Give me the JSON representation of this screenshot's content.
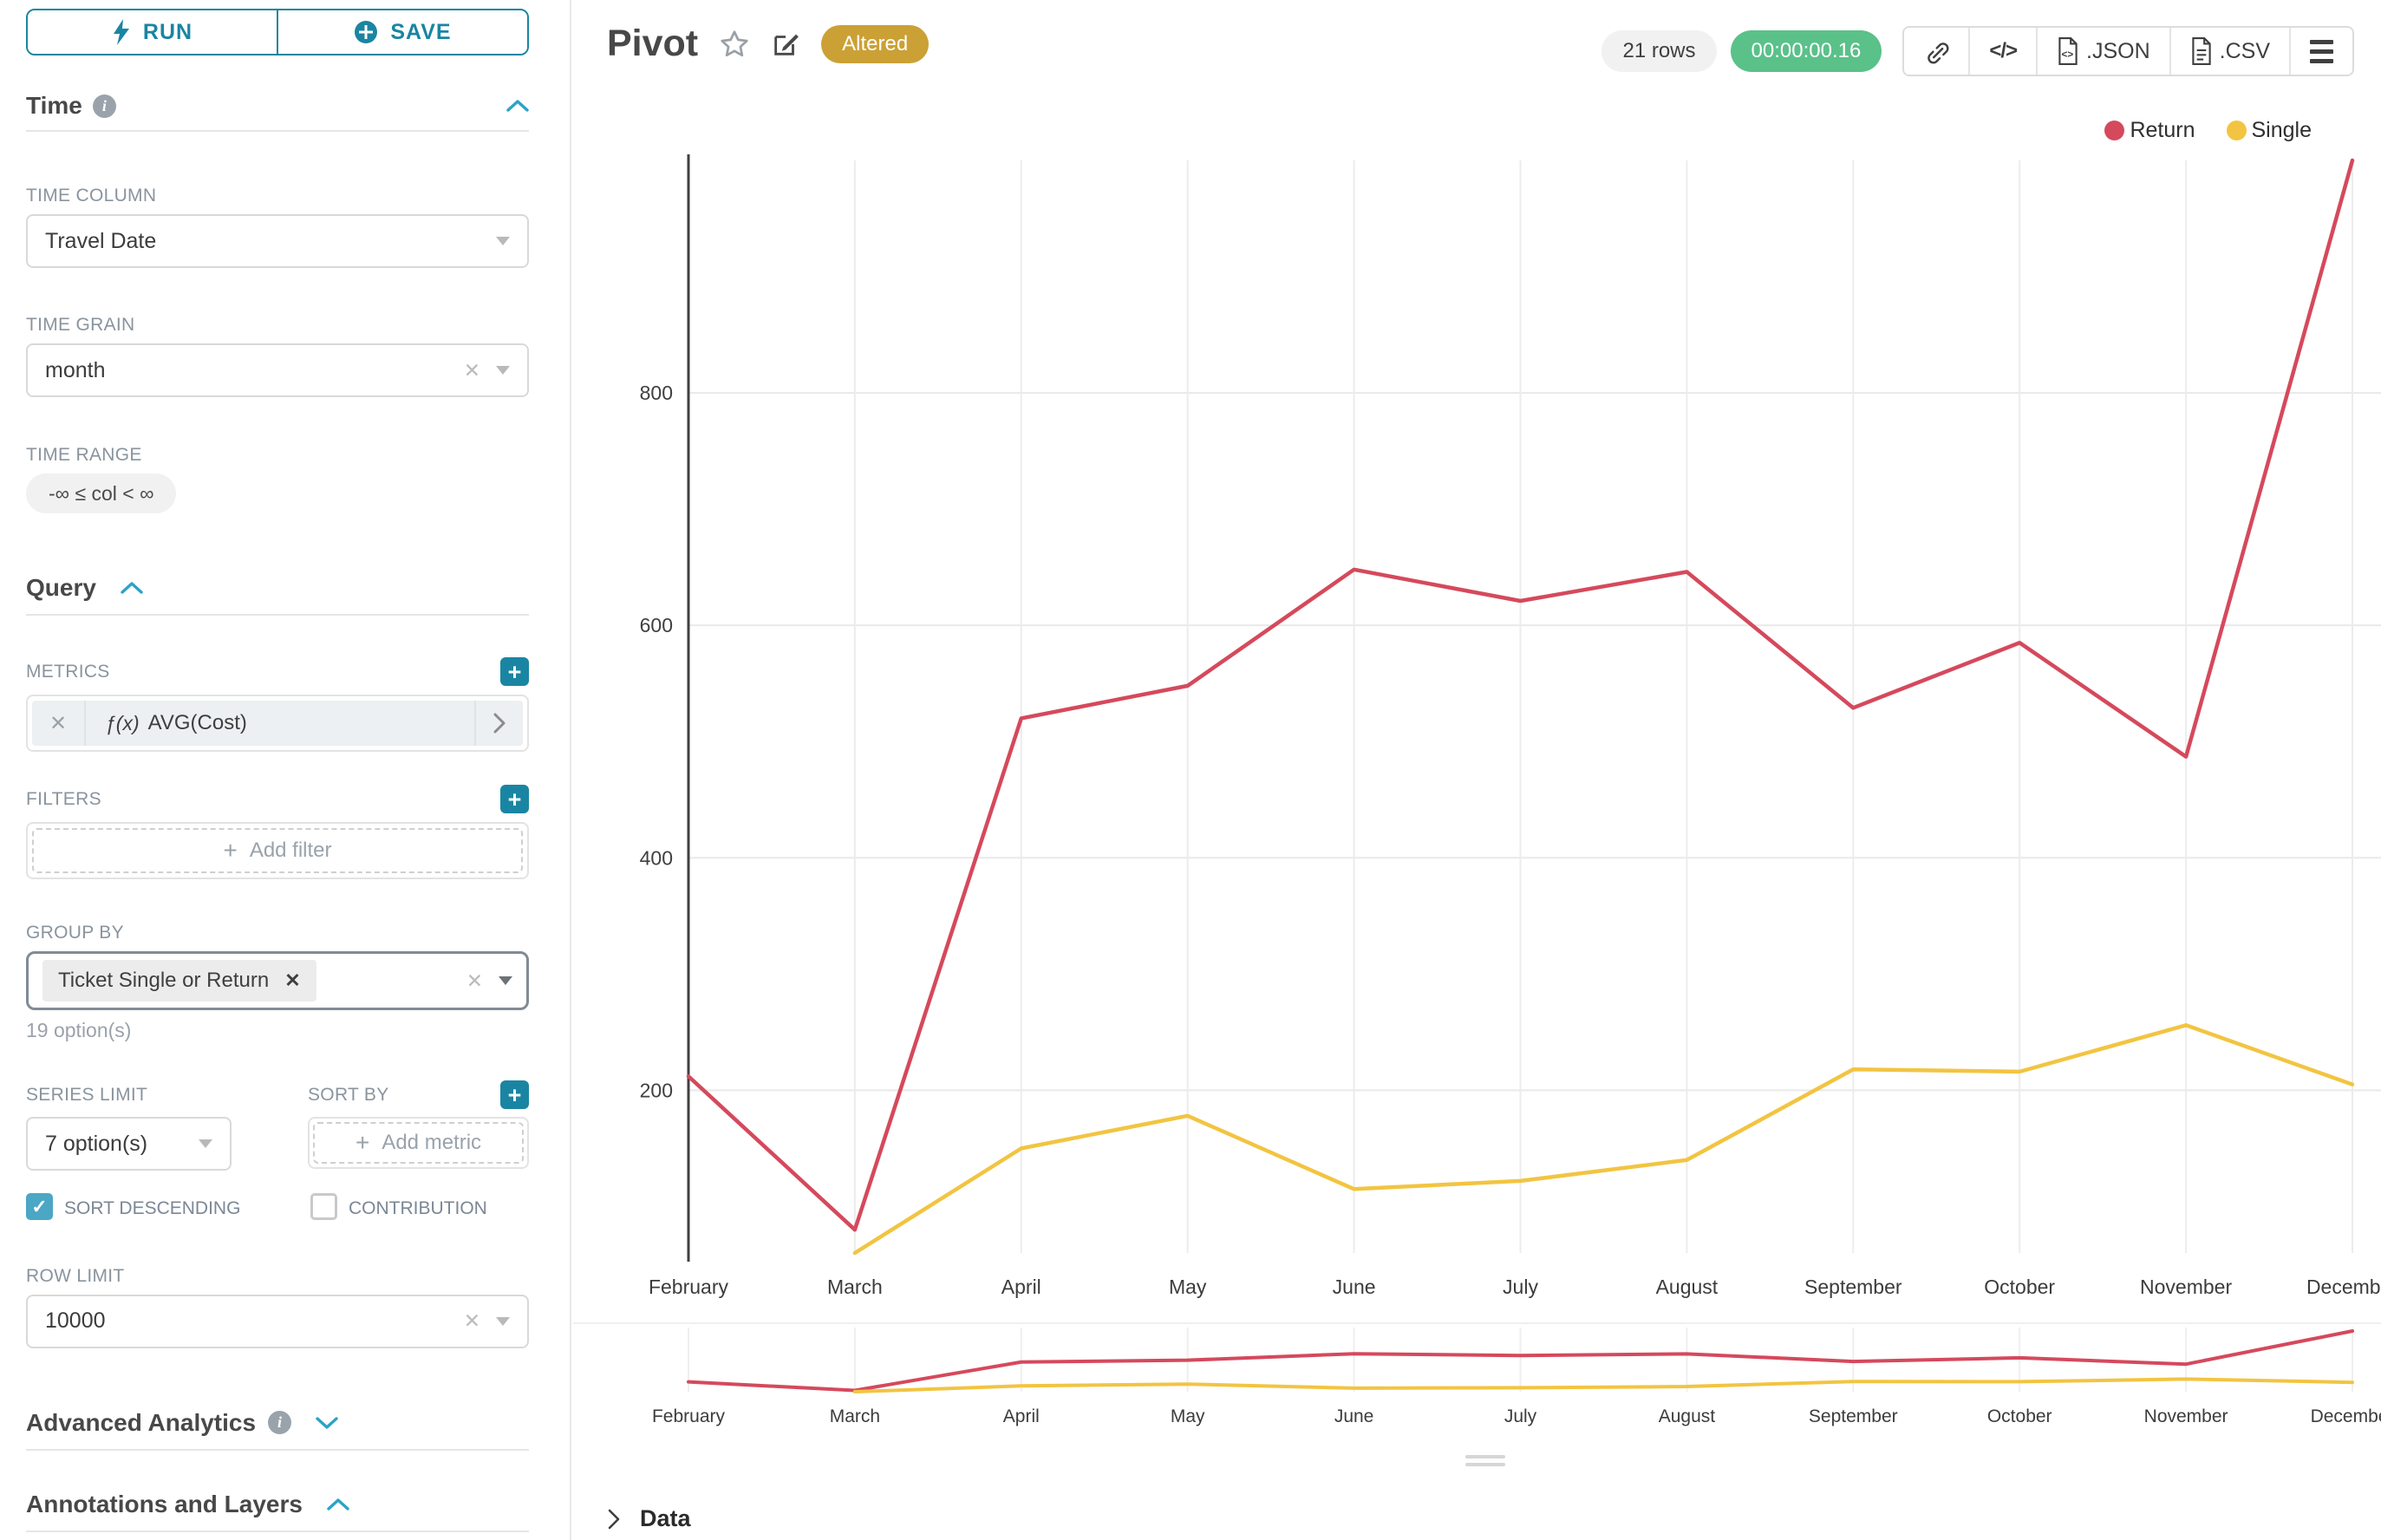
{
  "colors": {
    "accent": "#1a85a2",
    "accent-light": "#4ba7c4",
    "chevron": "#2ba3c7",
    "success": "#5ac189",
    "altered": "#cba135",
    "return-red": "#d5495c",
    "single-yellow": "#f2c441"
  },
  "sidebar": {
    "run_label": "RUN",
    "save_label": "SAVE",
    "time": {
      "section_title": "Time",
      "time_column_label": "TIME COLUMN",
      "time_column_value": "Travel Date",
      "time_grain_label": "TIME GRAIN",
      "time_grain_value": "month",
      "time_range_label": "TIME RANGE",
      "time_range_value": "-∞ ≤ col < ∞"
    },
    "query": {
      "section_title": "Query",
      "metrics_label": "METRICS",
      "metric_fx": "ƒ(x)",
      "metric_value": "AVG(Cost)",
      "filters_label": "FILTERS",
      "add_filter_label": "Add filter",
      "group_by_label": "GROUP BY",
      "group_by_tag": "Ticket Single or Return",
      "group_by_hint": "19 option(s)",
      "series_limit_label": "SERIES LIMIT",
      "series_limit_value": "7 option(s)",
      "sort_by_label": "SORT BY",
      "add_metric_label": "Add metric",
      "sort_descending_label": "SORT DESCENDING",
      "contribution_label": "CONTRIBUTION",
      "row_limit_label": "ROW LIMIT",
      "row_limit_value": "10000"
    },
    "advanced_analytics_label": "Advanced Analytics",
    "annotations_label": "Annotations and Layers"
  },
  "header": {
    "title": "Pivot",
    "altered_badge": "Altered",
    "rows_badge": "21 rows",
    "timer_badge": "00:00:00.16",
    "json_label": ".JSON",
    "csv_label": ".CSV"
  },
  "icons": {
    "run": "lightning-icon",
    "save": "plus-circle-icon",
    "info": "info-icon",
    "section_collapse": "chevron-up-icon",
    "section_expand": "chevron-down-icon",
    "favorite": "star-icon",
    "edit": "edit-pencil-icon",
    "share": "link-icon",
    "embed": "code-icon",
    "export_json": "file-json-icon",
    "export_csv": "file-csv-icon",
    "menu": "hamburger-icon",
    "drag": "drag-handle"
  },
  "chart_data": {
    "type": "line",
    "title": "Pivot",
    "categories": [
      "February",
      "March",
      "April",
      "May",
      "June",
      "July",
      "August",
      "September",
      "October",
      "November",
      "December"
    ],
    "series": [
      {
        "name": "Return",
        "color": "#d5495c",
        "values": [
          212,
          80,
          520,
          548,
          648,
          621,
          646,
          529,
          585,
          487,
          1000
        ]
      },
      {
        "name": "Single",
        "color": "#f2c441",
        "values": [
          null,
          60,
          150,
          178,
          115,
          122,
          140,
          218,
          216,
          256,
          205
        ]
      }
    ],
    "xlabel": "",
    "ylabel": "",
    "yticks": [
      200,
      400,
      600,
      800
    ],
    "ylim": [
      60,
      1000
    ],
    "grid": true,
    "legend_position": "top-right",
    "has_minimap": true
  },
  "data_panel": {
    "label": "Data"
  }
}
